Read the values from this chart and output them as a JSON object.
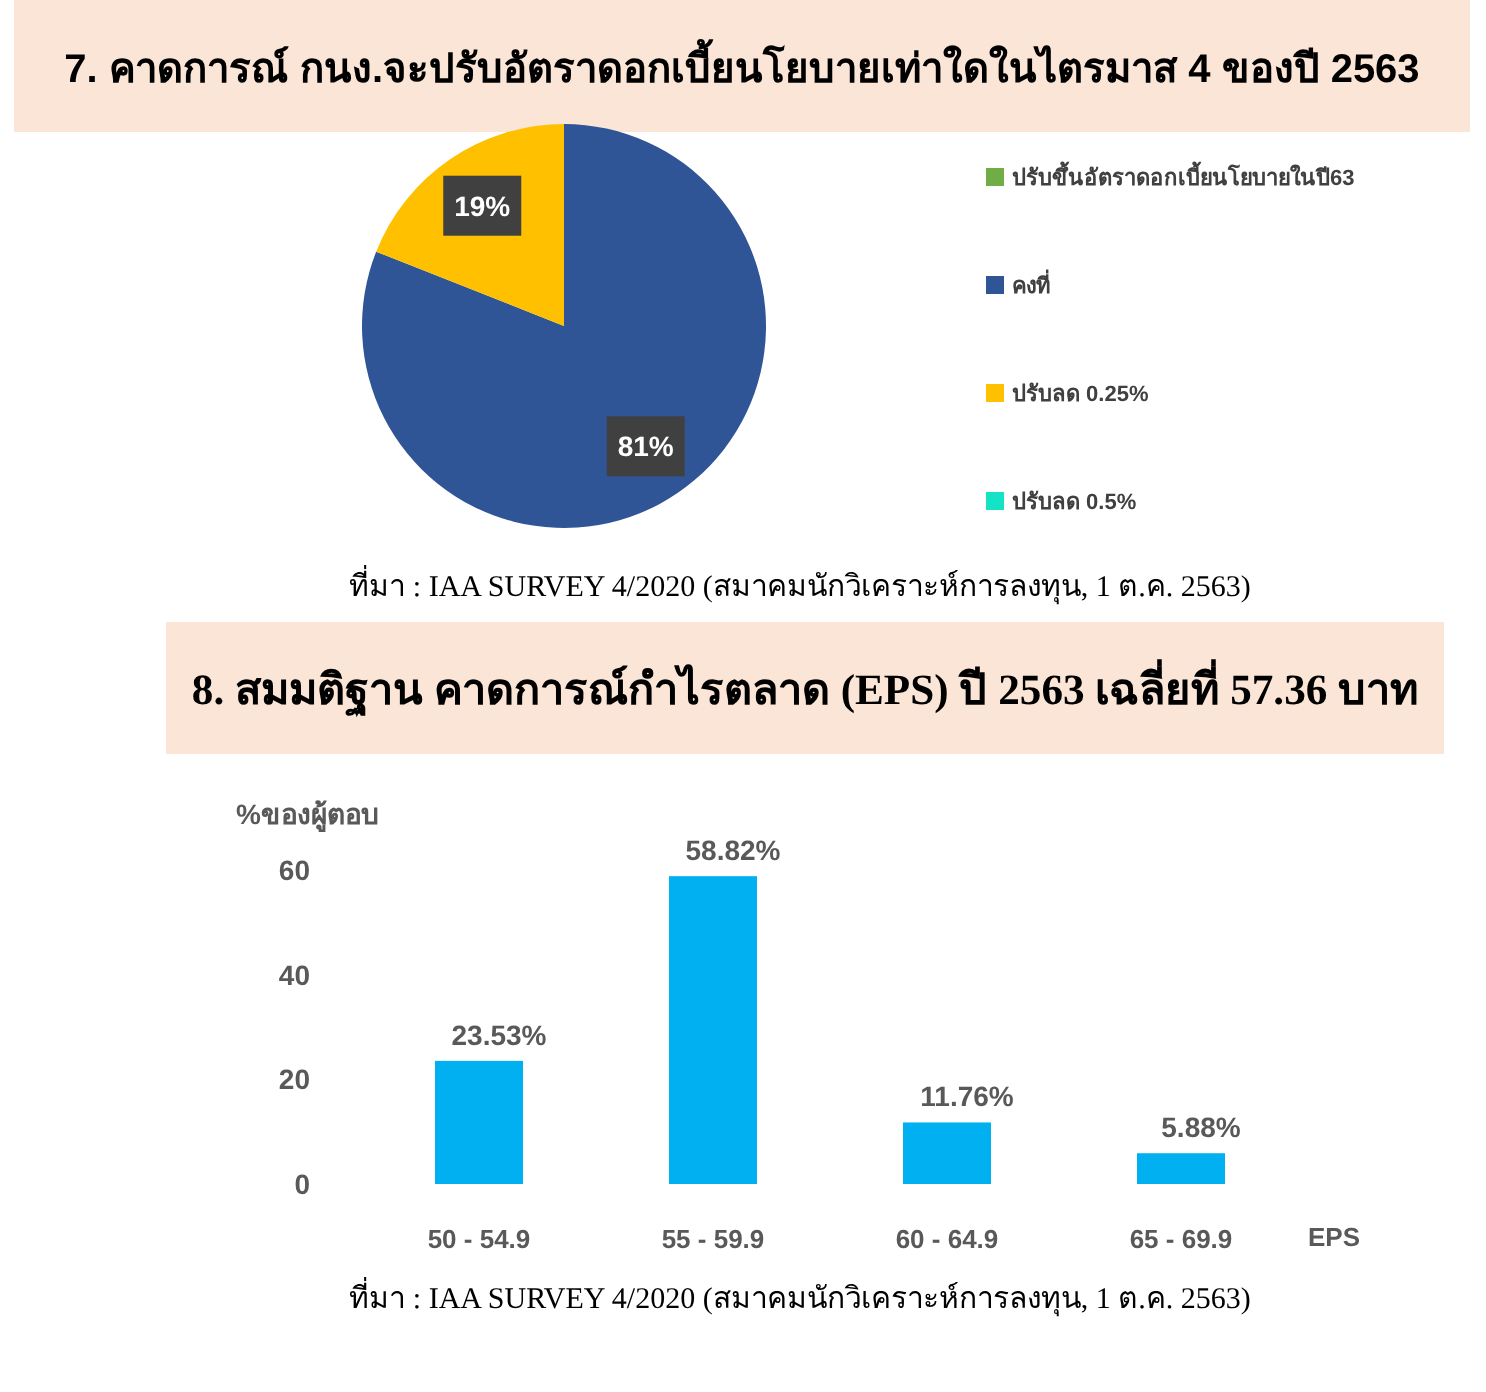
{
  "chart_data": [
    {
      "type": "pie",
      "title": "7. คาดการณ์ กนง.จะปรับอัตราดอกเบี้ยนโยบายเท่าใดในไตรมาส 4 ของปี 2563",
      "categories": [
        "ปรับขึ้นอัตราดอกเบี้ยนโยบายในปี63",
        "คงที่",
        "ปรับลด 0.25%",
        "ปรับลด 0.5%"
      ],
      "values": [
        0,
        81,
        19,
        0
      ],
      "colors": [
        "#70ad47",
        "#2f5597",
        "#ffc000",
        "#14e3c6"
      ],
      "value_labels": [
        null,
        "81%",
        "19%",
        null
      ],
      "legend": "right",
      "annotations": [
        "ที่มา : IAA SURVEY 4/2020 (สมาคมนักวิเคราะห์การลงทุน, 1 ต.ค. 2563)"
      ]
    },
    {
      "type": "bar",
      "title": "8. สมมติฐาน คาดการณ์กำไรตลาด (EPS) ปี 2563 เฉลี่ยที่ 57.36 บาท",
      "xlabel": "EPS",
      "ylabel": "%ของผู้ตอบ",
      "categories": [
        "50 - 54.9",
        "55 - 59.9",
        "60 - 64.9",
        "65 - 69.9"
      ],
      "values": [
        23.53,
        58.82,
        11.76,
        5.88
      ],
      "color": "#00b0f0",
      "value_labels": [
        "23.53%",
        "58.82%",
        "11.76%",
        "5.88%"
      ],
      "ylim": [
        0,
        60
      ],
      "yticks": [
        0,
        20,
        40,
        60
      ],
      "annotations": [
        "ที่มา : IAA SURVEY 4/2020 (สมาคมนักวิเคราะห์การลงทุน, 1 ต.ค. 2563)"
      ]
    }
  ]
}
